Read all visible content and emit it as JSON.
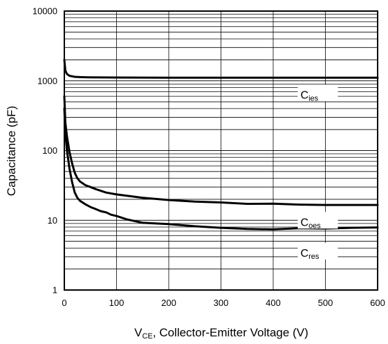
{
  "chart_data": {
    "type": "line",
    "xlabel": {
      "main": "V",
      "sub": "CE",
      "rest": ", Collector-Emitter Voltage (V)"
    },
    "ylabel": "Capacitance (pF)",
    "xlim": [
      0,
      600
    ],
    "ylim": [
      1,
      10000
    ],
    "y_scale": "log",
    "grid": true,
    "x_ticks": [
      "0",
      "100",
      "200",
      "300",
      "400",
      "500",
      "600"
    ],
    "y_ticks": [
      "1",
      "10",
      "100",
      "1000",
      "10000"
    ],
    "series": [
      {
        "name": "Cies",
        "label_main": "C",
        "label_sub": "ies",
        "x": [
          0,
          2,
          5,
          10,
          20,
          30,
          50,
          100,
          200,
          300,
          400,
          500,
          600
        ],
        "y": [
          2000,
          1400,
          1250,
          1180,
          1140,
          1130,
          1120,
          1115,
          1110,
          1110,
          1110,
          1110,
          1110
        ]
      },
      {
        "name": "Coes",
        "label_main": "C",
        "label_sub": "oes",
        "x": [
          0,
          2,
          5,
          10,
          15,
          20,
          25,
          30,
          40,
          50,
          60,
          80,
          100,
          150,
          200,
          250,
          300,
          350,
          400,
          450,
          500,
          550,
          600
        ],
        "y": [
          600,
          250,
          160,
          95,
          65,
          48,
          40,
          36,
          32,
          30,
          28,
          25,
          23.5,
          21,
          19.5,
          18.5,
          18,
          17.2,
          17.3,
          16.8,
          16.6,
          16.6,
          16.6
        ]
      },
      {
        "name": "Cres",
        "label_main": "C",
        "label_sub": "res",
        "x": [
          0,
          2,
          5,
          10,
          15,
          20,
          25,
          30,
          40,
          50,
          60,
          70,
          80,
          90,
          100,
          120,
          150,
          200,
          250,
          300,
          350,
          400,
          450,
          500,
          550,
          600
        ],
        "y": [
          400,
          180,
          100,
          55,
          35,
          25,
          21,
          19,
          17,
          15.5,
          14.5,
          13.5,
          13,
          12,
          11.5,
          10.3,
          9.2,
          8.8,
          8.2,
          7.8,
          7.5,
          7.4,
          7.7,
          7.6,
          7.8,
          7.9
        ]
      }
    ]
  }
}
